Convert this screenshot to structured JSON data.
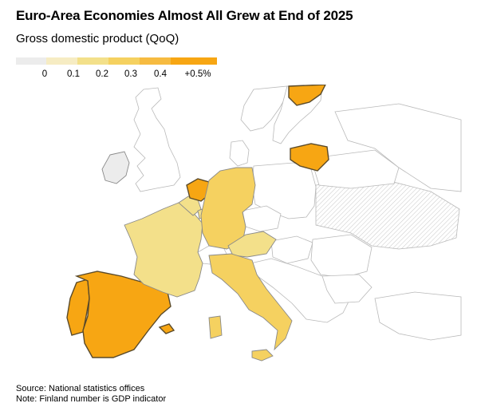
{
  "title": "Euro-Area Economies Almost All Grew at End of 2025",
  "subtitle": "Gross domestic product (QoQ)",
  "legend": {
    "bins": [
      {
        "label": "0",
        "color": "#ececec"
      },
      {
        "label": "0.1",
        "color": "#f6ecc3"
      },
      {
        "label": "0.2",
        "color": "#f3e08a"
      },
      {
        "label": "0.3",
        "color": "#f5d160"
      },
      {
        "label": "0.4",
        "color": "#f6bb41"
      },
      {
        "label": "+0.5%",
        "color": "#f7a613"
      }
    ]
  },
  "colors": {
    "land": "#ffffff",
    "nonEuro": "#ffffff",
    "border": "#b9b9b9",
    "outline": "#8a8a8a"
  },
  "chart_data": {
    "type": "choropleth",
    "metric": "GDP growth, quarter on quarter (%)",
    "regions": [
      {
        "name": "Spain",
        "value": 0.8
      },
      {
        "name": "Portugal",
        "value": 0.8
      },
      {
        "name": "France",
        "value": 0.2
      },
      {
        "name": "Belgium",
        "value": 0.2
      },
      {
        "name": "Luxembourg",
        "value": 0.2
      },
      {
        "name": "Netherlands",
        "value": 0.5
      },
      {
        "name": "Germany",
        "value": 0.3
      },
      {
        "name": "Austria",
        "value": 0.2
      },
      {
        "name": "Italy",
        "value": 0.3
      },
      {
        "name": "Lithuania",
        "value": 0.5
      },
      {
        "name": "Finland",
        "value": 0.5
      },
      {
        "name": "Ireland",
        "value": 0.0
      }
    ]
  },
  "notes": {
    "source": "Source: National statistics offices",
    "note": "Note: Finland number is GDP indicator"
  }
}
